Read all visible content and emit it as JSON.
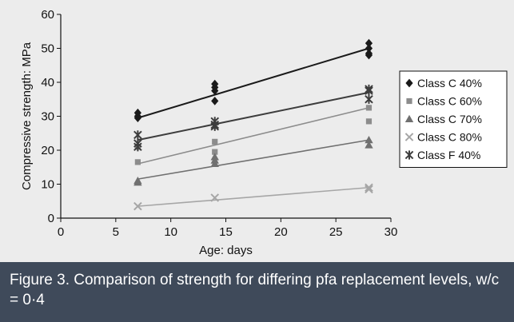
{
  "caption": "Figure 3. Comparison of strength for differing pfa replacement levels, w/c = 0·4",
  "chart_data": {
    "type": "scatter",
    "xlabel": "Age: days",
    "ylabel": "Compressive strength: MPa",
    "xlim": [
      0,
      30
    ],
    "ylim": [
      0,
      60
    ],
    "xticks": [
      0,
      5,
      10,
      15,
      20,
      25,
      30
    ],
    "yticks": [
      0,
      10,
      20,
      30,
      40,
      50,
      60
    ],
    "grid": false,
    "legend_position": "right",
    "series": [
      {
        "name": "Class C 40%",
        "marker": "diamond",
        "color": "#1a1a1a",
        "points": [
          [
            7,
            30
          ],
          [
            7,
            31
          ],
          [
            7,
            29.5
          ],
          [
            14,
            39.5
          ],
          [
            14,
            38.5
          ],
          [
            14,
            37.5
          ],
          [
            14,
            34.5
          ],
          [
            28,
            51.5
          ],
          [
            28,
            50
          ],
          [
            28,
            48.5
          ],
          [
            28,
            48
          ]
        ],
        "trend": [
          [
            7,
            29.5
          ],
          [
            28,
            50
          ]
        ]
      },
      {
        "name": "Class C 60%",
        "marker": "square",
        "color": "#8c8c8c",
        "points": [
          [
            7,
            16.5
          ],
          [
            7,
            21
          ],
          [
            14,
            22.5
          ],
          [
            14,
            19.5
          ],
          [
            28,
            32.5
          ],
          [
            28,
            28.5
          ]
        ],
        "trend": [
          [
            7,
            16
          ],
          [
            28,
            32.5
          ]
        ]
      },
      {
        "name": "Class C 70%",
        "marker": "triangle",
        "color": "#707070",
        "points": [
          [
            7,
            11
          ],
          [
            7,
            10.5
          ],
          [
            14,
            17
          ],
          [
            14,
            16
          ],
          [
            14,
            18
          ],
          [
            28,
            23
          ],
          [
            28,
            21.5
          ]
        ],
        "trend": [
          [
            7,
            11.5
          ],
          [
            28,
            23
          ]
        ]
      },
      {
        "name": "Class C 80%",
        "marker": "x",
        "color": "#a6a6a6",
        "points": [
          [
            7,
            3.5
          ],
          [
            14,
            6
          ],
          [
            28,
            9
          ],
          [
            28,
            8.5
          ]
        ],
        "trend": [
          [
            7,
            3.5
          ],
          [
            28,
            9
          ]
        ]
      },
      {
        "name": "Class F 40%",
        "marker": "asterisk",
        "color": "#3d3d3d",
        "points": [
          [
            7,
            24.5
          ],
          [
            7,
            22
          ],
          [
            7,
            21
          ],
          [
            14,
            28.5
          ],
          [
            14,
            27.5
          ],
          [
            14,
            27
          ],
          [
            28,
            38
          ],
          [
            28,
            37.5
          ],
          [
            28,
            35
          ]
        ],
        "trend": [
          [
            7,
            23
          ],
          [
            28,
            37
          ]
        ]
      }
    ]
  }
}
